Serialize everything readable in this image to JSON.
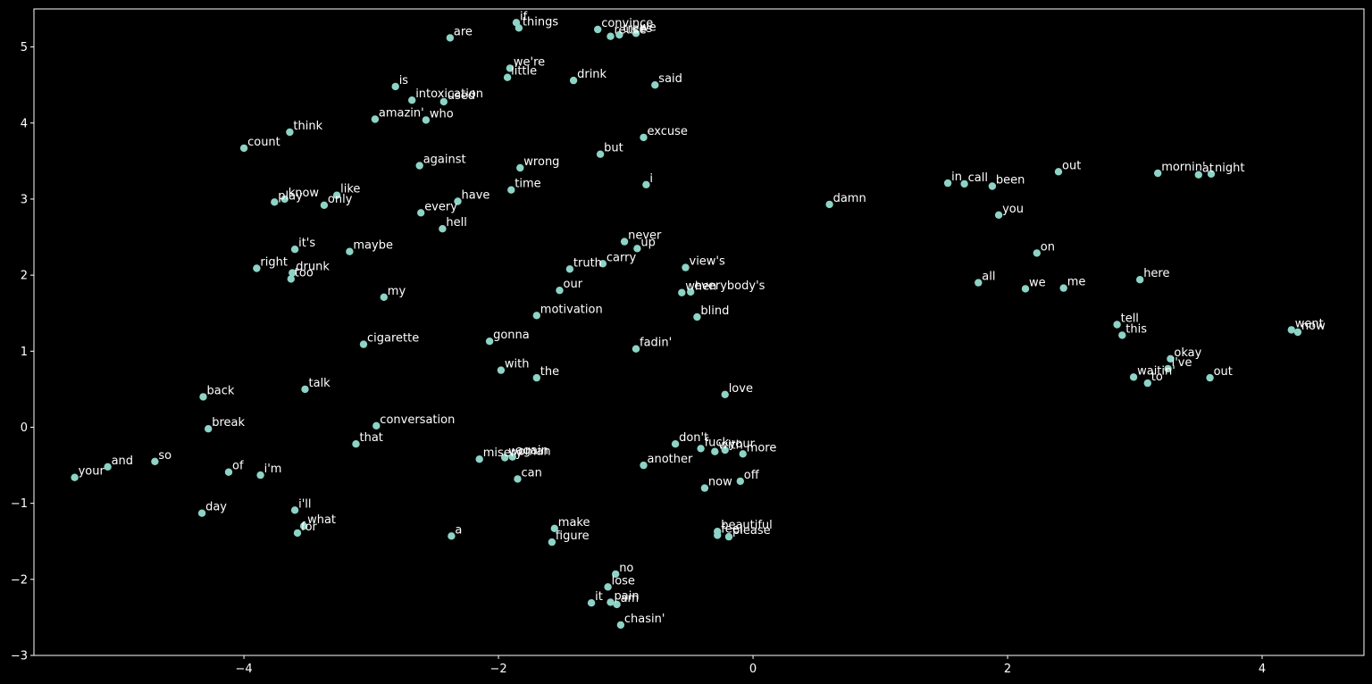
{
  "chart_data": {
    "type": "scatter",
    "title": "",
    "xlabel": "",
    "ylabel": "",
    "xlim": [
      -5.65,
      4.8
    ],
    "ylim": [
      -3.0,
      5.5
    ],
    "xticks": [
      -4,
      -2,
      0,
      2,
      4
    ],
    "yticks": [
      -3,
      -2,
      -1,
      0,
      1,
      2,
      3,
      4,
      5
    ],
    "grid": false,
    "background": "#000000",
    "frame_color": "#ffffff",
    "point_color": "#8dd3c7",
    "label_color": "#ffffff",
    "points": [
      {
        "label": "if",
        "x": -1.86,
        "y": 5.32
      },
      {
        "label": "things",
        "x": -1.84,
        "y": 5.25
      },
      {
        "label": "convince",
        "x": -1.22,
        "y": 5.23
      },
      {
        "label": "reuse",
        "x": -1.12,
        "y": 5.14
      },
      {
        "label": "trees",
        "x": -1.05,
        "y": 5.16
      },
      {
        "label": "we",
        "x": -0.92,
        "y": 5.18
      },
      {
        "label": "are",
        "x": -2.38,
        "y": 5.12
      },
      {
        "label": "we're",
        "x": -1.91,
        "y": 4.72
      },
      {
        "label": "little",
        "x": -1.93,
        "y": 4.6
      },
      {
        "label": "drink",
        "x": -1.41,
        "y": 4.56
      },
      {
        "label": "said",
        "x": -0.77,
        "y": 4.5
      },
      {
        "label": "is",
        "x": -2.81,
        "y": 4.48
      },
      {
        "label": "intoxication",
        "x": -2.68,
        "y": 4.3
      },
      {
        "label": "used",
        "x": -2.43,
        "y": 4.28
      },
      {
        "label": "amazin'",
        "x": -2.97,
        "y": 4.05
      },
      {
        "label": "who",
        "x": -2.57,
        "y": 4.04
      },
      {
        "label": "think",
        "x": -3.64,
        "y": 3.88
      },
      {
        "label": "count",
        "x": -4.0,
        "y": 3.67
      },
      {
        "label": "excuse",
        "x": -0.86,
        "y": 3.81
      },
      {
        "label": "but",
        "x": -1.2,
        "y": 3.59
      },
      {
        "label": "against",
        "x": -2.62,
        "y": 3.44
      },
      {
        "label": "wrong",
        "x": -1.83,
        "y": 3.41
      },
      {
        "label": "time",
        "x": -1.9,
        "y": 3.12
      },
      {
        "label": "i",
        "x": -0.84,
        "y": 3.19
      },
      {
        "label": "play",
        "x": -3.76,
        "y": 2.96
      },
      {
        "label": "know",
        "x": -3.68,
        "y": 3.0
      },
      {
        "label": "like",
        "x": -3.27,
        "y": 3.05
      },
      {
        "label": "only",
        "x": -3.37,
        "y": 2.92
      },
      {
        "label": "have",
        "x": -2.32,
        "y": 2.97
      },
      {
        "label": "every",
        "x": -2.61,
        "y": 2.82
      },
      {
        "label": "hell",
        "x": -2.44,
        "y": 2.61
      },
      {
        "label": "damn",
        "x": 0.6,
        "y": 2.93
      },
      {
        "label": "in",
        "x": 1.53,
        "y": 3.21
      },
      {
        "label": "call",
        "x": 1.66,
        "y": 3.2
      },
      {
        "label": "been",
        "x": 1.88,
        "y": 3.17
      },
      {
        "label": "out",
        "x": 2.4,
        "y": 3.36
      },
      {
        "label": "mornin'",
        "x": 3.18,
        "y": 3.34
      },
      {
        "label": "at",
        "x": 3.5,
        "y": 3.32
      },
      {
        "label": "night",
        "x": 3.6,
        "y": 3.33
      },
      {
        "label": "you",
        "x": 1.93,
        "y": 2.79
      },
      {
        "label": "it's",
        "x": -3.6,
        "y": 2.34
      },
      {
        "label": "maybe",
        "x": -3.17,
        "y": 2.31
      },
      {
        "label": "never",
        "x": -1.01,
        "y": 2.44
      },
      {
        "label": "up",
        "x": -0.91,
        "y": 2.35
      },
      {
        "label": "on",
        "x": 2.23,
        "y": 2.29
      },
      {
        "label": "right",
        "x": -3.9,
        "y": 2.09
      },
      {
        "label": "drunk",
        "x": -3.62,
        "y": 2.03
      },
      {
        "label": "too",
        "x": -3.63,
        "y": 1.95
      },
      {
        "label": "truth",
        "x": -1.44,
        "y": 2.08
      },
      {
        "label": "carry",
        "x": -1.18,
        "y": 2.15
      },
      {
        "label": "view's",
        "x": -0.53,
        "y": 2.1
      },
      {
        "label": "all",
        "x": 1.77,
        "y": 1.9
      },
      {
        "label": "we",
        "x": 2.14,
        "y": 1.82
      },
      {
        "label": "me",
        "x": 2.44,
        "y": 1.83
      },
      {
        "label": "here",
        "x": 3.04,
        "y": 1.94
      },
      {
        "label": "my",
        "x": -2.9,
        "y": 1.71
      },
      {
        "label": "our",
        "x": -1.52,
        "y": 1.8
      },
      {
        "label": "when",
        "x": -0.56,
        "y": 1.77
      },
      {
        "label": "everybody's",
        "x": -0.49,
        "y": 1.78
      },
      {
        "label": "motivation",
        "x": -1.7,
        "y": 1.47
      },
      {
        "label": "blind",
        "x": -0.44,
        "y": 1.45
      },
      {
        "label": "tell",
        "x": 2.86,
        "y": 1.35
      },
      {
        "label": "this",
        "x": 2.9,
        "y": 1.21
      },
      {
        "label": "went",
        "x": 4.23,
        "y": 1.28
      },
      {
        "label": "now",
        "x": 4.28,
        "y": 1.25
      },
      {
        "label": "cigarette",
        "x": -3.06,
        "y": 1.09
      },
      {
        "label": "gonna",
        "x": -2.07,
        "y": 1.13
      },
      {
        "label": "fadin'",
        "x": -0.92,
        "y": 1.03
      },
      {
        "label": "okay",
        "x": 3.28,
        "y": 0.9
      },
      {
        "label": "i've",
        "x": 3.26,
        "y": 0.77
      },
      {
        "label": "waitin'",
        "x": 2.99,
        "y": 0.66
      },
      {
        "label": "to",
        "x": 3.1,
        "y": 0.58
      },
      {
        "label": "out",
        "x": 3.59,
        "y": 0.65
      },
      {
        "label": "with",
        "x": -1.98,
        "y": 0.75
      },
      {
        "label": "the",
        "x": -1.7,
        "y": 0.65
      },
      {
        "label": "back",
        "x": -4.32,
        "y": 0.4
      },
      {
        "label": "talk",
        "x": -3.52,
        "y": 0.5
      },
      {
        "label": "love",
        "x": -0.22,
        "y": 0.43
      },
      {
        "label": "break",
        "x": -4.28,
        "y": -0.02
      },
      {
        "label": "conversation",
        "x": -2.96,
        "y": 0.02
      },
      {
        "label": "that",
        "x": -3.12,
        "y": -0.22
      },
      {
        "label": "don't",
        "x": -0.61,
        "y": -0.22
      },
      {
        "label": "fuck",
        "x": -0.41,
        "y": -0.28
      },
      {
        "label": "with",
        "x": -0.3,
        "y": -0.32
      },
      {
        "label": "your",
        "x": -0.22,
        "y": -0.3
      },
      {
        "label": "more",
        "x": -0.08,
        "y": -0.35
      },
      {
        "label": "misery",
        "x": -2.15,
        "y": -0.42
      },
      {
        "label": "woman",
        "x": -1.95,
        "y": -0.4
      },
      {
        "label": "again",
        "x": -1.89,
        "y": -0.39
      },
      {
        "label": "another",
        "x": -0.86,
        "y": -0.5
      },
      {
        "label": "so",
        "x": -4.7,
        "y": -0.45
      },
      {
        "label": "and",
        "x": -5.07,
        "y": -0.52
      },
      {
        "label": "your",
        "x": -5.33,
        "y": -0.66
      },
      {
        "label": "of",
        "x": -4.12,
        "y": -0.59
      },
      {
        "label": "i'm",
        "x": -3.87,
        "y": -0.63
      },
      {
        "label": "can",
        "x": -1.85,
        "y": -0.68
      },
      {
        "label": "off",
        "x": -0.1,
        "y": -0.71
      },
      {
        "label": "now",
        "x": -0.38,
        "y": -0.8
      },
      {
        "label": "day",
        "x": -4.33,
        "y": -1.13
      },
      {
        "label": "i'll",
        "x": -3.6,
        "y": -1.09
      },
      {
        "label": "what",
        "x": -3.53,
        "y": -1.3
      },
      {
        "label": "for",
        "x": -3.58,
        "y": -1.39
      },
      {
        "label": "a",
        "x": -2.37,
        "y": -1.43
      },
      {
        "label": "make",
        "x": -1.56,
        "y": -1.33
      },
      {
        "label": "figure",
        "x": -1.58,
        "y": -1.51
      },
      {
        "label": "beautiful",
        "x": -0.28,
        "y": -1.37
      },
      {
        "label": "feel",
        "x": -0.28,
        "y": -1.42
      },
      {
        "label": "please",
        "x": -0.19,
        "y": -1.44
      },
      {
        "label": "no",
        "x": -1.08,
        "y": -1.93
      },
      {
        "label": "lose",
        "x": -1.14,
        "y": -2.1
      },
      {
        "label": "it",
        "x": -1.27,
        "y": -2.31
      },
      {
        "label": "pain",
        "x": -1.12,
        "y": -2.3
      },
      {
        "label": "am",
        "x": -1.07,
        "y": -2.33
      },
      {
        "label": "chasin'",
        "x": -1.04,
        "y": -2.6
      }
    ]
  }
}
